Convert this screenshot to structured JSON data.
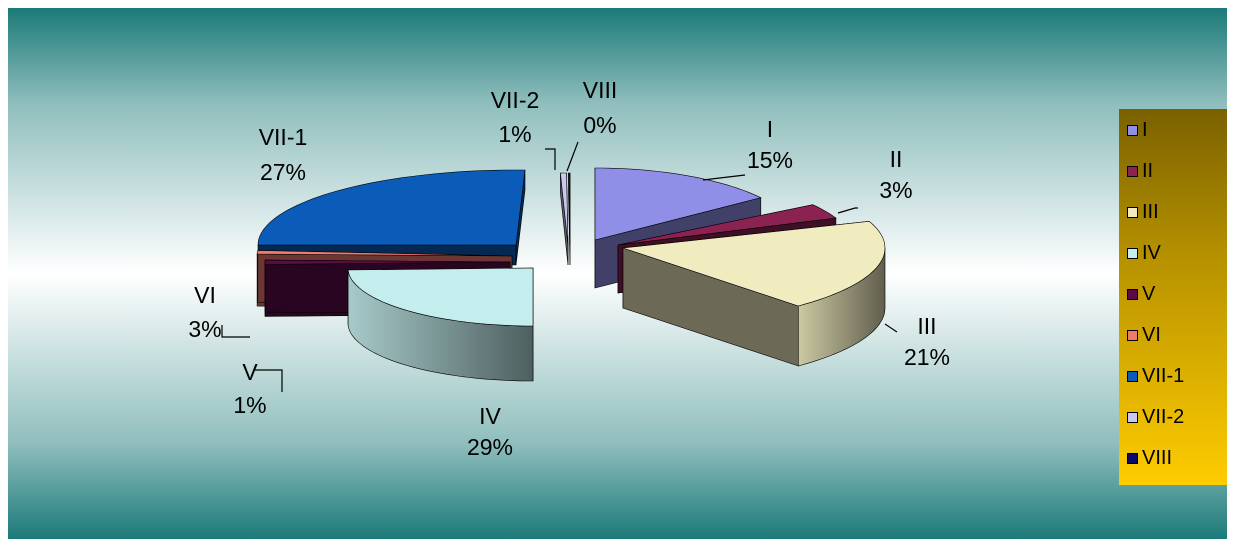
{
  "chart_data": {
    "type": "pie",
    "title": "",
    "legend_position": "right",
    "slices": [
      {
        "name": "I",
        "percent_label": "15%",
        "value": 15,
        "color": "#8f8fe8"
      },
      {
        "name": "II",
        "percent_label": "3%",
        "value": 3,
        "color": "#8b2252"
      },
      {
        "name": "III",
        "percent_label": "21%",
        "value": 21,
        "color": "#f0ecc0"
      },
      {
        "name": "IV",
        "percent_label": "29%",
        "value": 29,
        "color": "#c4eeee"
      },
      {
        "name": "V",
        "percent_label": "1%",
        "value": 1,
        "color": "#5a0a4a"
      },
      {
        "name": "VI",
        "percent_label": "3%",
        "value": 3,
        "color": "#f07a70"
      },
      {
        "name": "VII-1",
        "percent_label": "27%",
        "value": 27,
        "color": "#0a5cb8"
      },
      {
        "name": "VII-2",
        "percent_label": "1%",
        "value": 1,
        "color": "#c8c8f0"
      },
      {
        "name": "VIII",
        "percent_label": "0%",
        "value": 0,
        "color": "#0a0a6e"
      }
    ]
  }
}
